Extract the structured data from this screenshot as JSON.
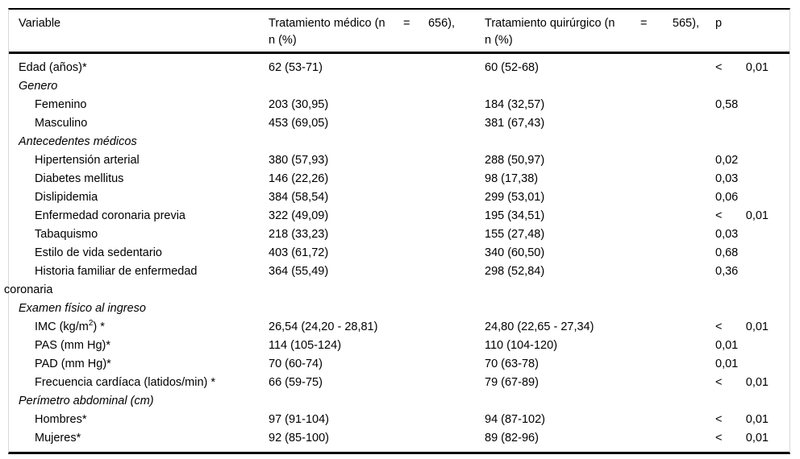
{
  "table": {
    "header": {
      "variable": "Variable",
      "medical": {
        "parts": [
          "Tratamiento médico (n",
          "=",
          "656),"
        ],
        "line2": "n (%)"
      },
      "surgical": {
        "parts": [
          "Tratamiento quirúrgico (n",
          "=",
          "565),"
        ],
        "line2": "n (%)"
      },
      "p": "p"
    },
    "rows": [
      {
        "type": "data",
        "label": "Edad (años)*",
        "v2": "62 (53-71)",
        "v3": "60 (52-68)",
        "p": "< 0,01"
      },
      {
        "type": "section",
        "label": "Genero",
        "v2": "",
        "v3": "",
        "p": ""
      },
      {
        "type": "item",
        "label": "Femenino",
        "v2": "203 (30,95)",
        "v3": "184 (32,57)",
        "p": "0,58"
      },
      {
        "type": "item",
        "label": "Masculino",
        "v2": "453 (69,05)",
        "v3": "381 (67,43)",
        "p": ""
      },
      {
        "type": "section",
        "label": "Antecedentes médicos",
        "v2": "",
        "v3": "",
        "p": ""
      },
      {
        "type": "item",
        "label": "Hipertensión arterial",
        "v2": "380 (57,93)",
        "v3": "288 (50,97)",
        "p": "0,02"
      },
      {
        "type": "item",
        "label": "Diabetes mellitus",
        "v2": "146 (22,26)",
        "v3": "98 (17,38)",
        "p": "0,03"
      },
      {
        "type": "item",
        "label": "Dislipidemia",
        "v2": "384 (58,54)",
        "v3": "299 (53,01)",
        "p": "0,06"
      },
      {
        "type": "item",
        "label": "Enfermedad coronaria previa",
        "v2": "322 (49,09)",
        "v3": "195 (34,51)",
        "p": "< 0,01"
      },
      {
        "type": "item",
        "label": "Tabaquismo",
        "v2": "218 (33,23)",
        "v3": "155 (27,48)",
        "p": "0,03"
      },
      {
        "type": "item",
        "label": "Estilo de vida sedentario",
        "v2": "403 (61,72)",
        "v3": "340 (60,50)",
        "p": "0,68"
      },
      {
        "type": "item",
        "label": "Historia familiar de enfermedad",
        "label2": "coronaria",
        "v2": "364 (55,49)",
        "v3": "298 (52,84)",
        "p": "0,36"
      },
      {
        "type": "section",
        "label": "Examen físico al ingreso",
        "v2": "",
        "v3": "",
        "p": ""
      },
      {
        "type": "item",
        "label": "IMC (kg/m",
        "label_sup": "2",
        "label_post": ") *",
        "v2": "26,54 (24,20 - 28,81)",
        "v3": "24,80 (22,65 - 27,34)",
        "p": "< 0,01"
      },
      {
        "type": "item",
        "label": "PAS (mm Hg)*",
        "v2": "114 (105-124)",
        "v3": "110 (104-120)",
        "p": "0,01"
      },
      {
        "type": "item",
        "label": "PAD (mm Hg)*",
        "v2": "70 (60-74)",
        "v3": "70 (63-78)",
        "p": "0,01"
      },
      {
        "type": "item",
        "label": "Frecuencia cardíaca (latidos/min) *",
        "v2": "66 (59-75)",
        "v3": "79 (67-89)",
        "p": "< 0,01"
      },
      {
        "type": "section",
        "label": "Perímetro abdominal (cm)",
        "v2": "",
        "v3": "",
        "p": ""
      },
      {
        "type": "item",
        "label": "Hombres*",
        "v2": "97 (91-104)",
        "v3": "94 (87-102)",
        "p": "< 0,01"
      },
      {
        "type": "item",
        "label": "Mujeres*",
        "v2": "92 (85-100)",
        "v3": "89 (82-96)",
        "p": "< 0,01"
      }
    ]
  }
}
